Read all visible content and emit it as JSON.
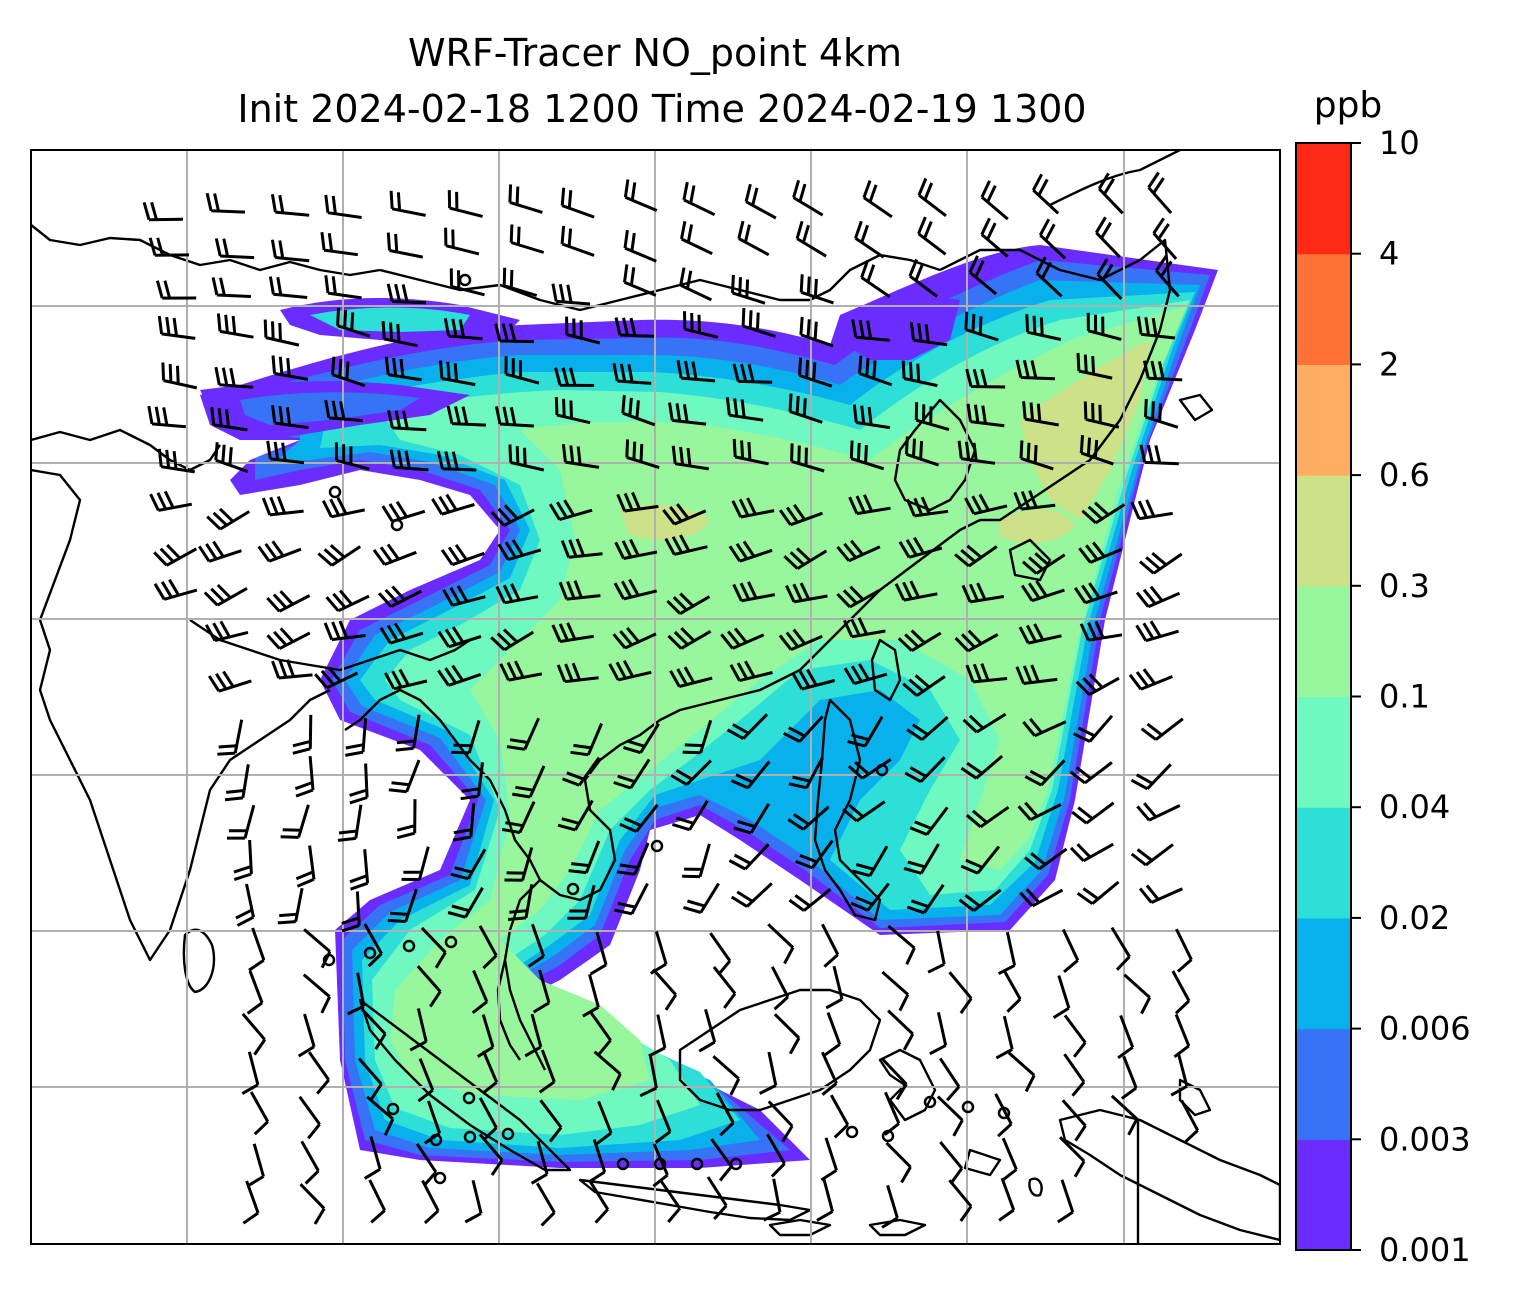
{
  "title": {
    "line1": "WRF-Tracer NO_point 4km",
    "line2": "Init 2024-02-18 1200 Time 2024-02-19 1300"
  },
  "colorbar": {
    "unit": "ppb",
    "levels": [
      "0.001",
      "0.003",
      "0.006",
      "0.02",
      "0.04",
      "0.1",
      "0.3",
      "0.6",
      "2",
      "4",
      "10"
    ],
    "colors": [
      "#6a2cff",
      "#3674f5",
      "#08b0ec",
      "#2ddfd6",
      "#6ff8c0",
      "#98f69c",
      "#cde188",
      "#fead62",
      "#ff7236",
      "#ff2a16"
    ]
  },
  "map": {
    "gridlines": true,
    "coastline_color": "#000000",
    "grid_color": "#b0b0b0",
    "wind_barbs": "black"
  }
}
